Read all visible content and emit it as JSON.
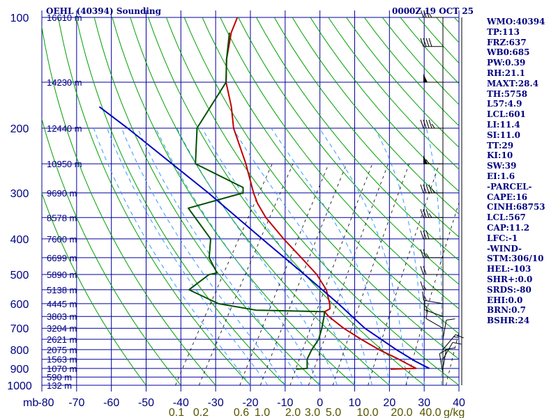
{
  "header": {
    "title": "OEHL (40394) Sounding",
    "time": "0000Z 19 OCT 25"
  },
  "indices": [
    "WMO:40394",
    "TP:113",
    "FRZ:637",
    "WB0:685",
    "PW:0.39",
    "RH:21.1",
    "MAXT:28.4",
    "TH:5758",
    "L57:4.9",
    "LCL:601",
    "LI:11.4",
    "SI:11.0",
    "TT:29",
    "KI:10",
    "SW:39",
    "EI:1.6",
    "-PARCEL-",
    "CAPE:16",
    "CINH:68753",
    "LCL:567",
    "CAP:11.2",
    "LFC:-1",
    "-WIND-",
    "STM:306/10",
    "HEL:-103",
    "SHR+:0.0",
    "SRDS:-80",
    "EHI:0.0",
    "BRN:0.7",
    "BSHR:24"
  ],
  "chart_data": {
    "type": "line",
    "title": "OEHL (40394) Sounding",
    "xlabel": "",
    "ylabel": "",
    "xlim": [
      -80,
      40
    ],
    "ylim": [
      1000,
      100
    ],
    "y_scale": "log",
    "grid": true,
    "pressure_ticks": [
      100,
      200,
      300,
      400,
      500,
      600,
      700,
      800,
      900,
      1000
    ],
    "pressure_unit_label": "mb",
    "temperature_ticks": [
      -80,
      -70,
      -60,
      -50,
      -40,
      -30,
      -20,
      -10,
      0,
      10,
      20,
      30,
      40
    ],
    "mixing_ratio_labels": [
      "0.1",
      "0.2",
      "0.6",
      "1.0",
      "2.0",
      "3.0",
      "5.0",
      "10.0",
      "20.0",
      "40.0"
    ],
    "mixing_ratio_unit": "g/kg",
    "height_labels": [
      {
        "p": 100,
        "text": "16610 m"
      },
      {
        "p": 150,
        "text": "14230 m"
      },
      {
        "p": 200,
        "text": "12440 m"
      },
      {
        "p": 250,
        "text": "10950 m"
      },
      {
        "p": 300,
        "text": "9690 m"
      },
      {
        "p": 350,
        "text": "8578 m"
      },
      {
        "p": 400,
        "text": "7600 m"
      },
      {
        "p": 450,
        "text": "6699 m"
      },
      {
        "p": 500,
        "text": "5890 m"
      },
      {
        "p": 550,
        "text": "5138 m"
      },
      {
        "p": 600,
        "text": "4445 m"
      },
      {
        "p": 650,
        "text": "3803 m"
      },
      {
        "p": 700,
        "text": "3204 m"
      },
      {
        "p": 750,
        "text": "2621 m"
      },
      {
        "p": 800,
        "text": "2075 m"
      },
      {
        "p": 850,
        "text": "1563 m"
      },
      {
        "p": 900,
        "text": "1070 m"
      },
      {
        "p": 950,
        "text": "590 m"
      },
      {
        "p": 1000,
        "text": "132 m"
      }
    ],
    "series": [
      {
        "key": "temperature",
        "color": "#c00000",
        "points": [
          [
            904,
            17.4
          ],
          [
            900,
            24.6
          ],
          [
            880,
            22.0
          ],
          [
            850,
            18.0
          ],
          [
            800,
            10.5
          ],
          [
            750,
            3.5
          ],
          [
            700,
            -3.5
          ],
          [
            650,
            -10.0
          ],
          [
            631,
            -12.0
          ],
          [
            620,
            -11.0
          ],
          [
            600,
            -12.0
          ],
          [
            550,
            -15.5
          ],
          [
            500,
            -21.0
          ],
          [
            450,
            -28.5
          ],
          [
            400,
            -37.0
          ],
          [
            350,
            -46.0
          ],
          [
            320,
            -51.0
          ],
          [
            300,
            -54.0
          ],
          [
            250,
            -61.5
          ],
          [
            200,
            -71.5
          ],
          [
            175,
            -76.0
          ],
          [
            150,
            -82.0
          ],
          [
            130,
            -86.0
          ],
          [
            110,
            -89.5
          ],
          [
            100,
            -90.5
          ]
        ]
      },
      {
        "key": "dewpoint",
        "color": "#005000",
        "points": [
          [
            904,
            -9.8
          ],
          [
            900,
            -6.7
          ],
          [
            850,
            -8.4
          ],
          [
            800,
            -8.8
          ],
          [
            750,
            -8.7
          ],
          [
            700,
            -9.8
          ],
          [
            650,
            -11.3
          ],
          [
            631,
            -12.0
          ],
          [
            625,
            -32.0
          ],
          [
            600,
            -44.0
          ],
          [
            550,
            -55.0
          ],
          [
            500,
            -52.0
          ],
          [
            495,
            -50.0
          ],
          [
            450,
            -55.0
          ],
          [
            400,
            -58.0
          ],
          [
            330,
            -70.0
          ],
          [
            300,
            -57.0
          ],
          [
            290,
            -58.0
          ],
          [
            250,
            -76.0
          ],
          [
            200,
            -82.0
          ],
          [
            150,
            -82.0
          ],
          [
            130,
            -86.0
          ],
          [
            110,
            -90.0
          ]
        ]
      },
      {
        "key": "parcel",
        "color": "#0000c0",
        "points": [
          [
            900,
            28.4
          ],
          [
            860,
            23.0
          ],
          [
            800,
            15.5
          ],
          [
            700,
            2.6
          ],
          [
            600,
            -9.5
          ],
          [
            500,
            -24.5
          ],
          [
            400,
            -43.2
          ],
          [
            300,
            -67.0
          ],
          [
            200,
            -102.0
          ],
          [
            175,
            -114.0
          ]
        ]
      }
    ],
    "wind_barbs": [
      {
        "p": 925,
        "dir": 350,
        "spd": 10
      },
      {
        "p": 900,
        "dir": 10,
        "spd": 10
      },
      {
        "p": 850,
        "dir": 30,
        "spd": 10
      },
      {
        "p": 800,
        "dir": 40,
        "spd": 15
      },
      {
        "p": 750,
        "dir": 10,
        "spd": 10
      },
      {
        "p": 700,
        "dir": 300,
        "spd": 10
      },
      {
        "p": 650,
        "dir": 290,
        "spd": 15
      },
      {
        "p": 600,
        "dir": 280,
        "spd": 15
      },
      {
        "p": 550,
        "dir": 270,
        "spd": 15
      },
      {
        "p": 500,
        "dir": 270,
        "spd": 20
      },
      {
        "p": 450,
        "dir": 270,
        "spd": 25
      },
      {
        "p": 400,
        "dir": 270,
        "spd": 30
      },
      {
        "p": 350,
        "dir": 270,
        "spd": 35
      },
      {
        "p": 300,
        "dir": 270,
        "spd": 45
      },
      {
        "p": 250,
        "dir": 270,
        "spd": 55
      },
      {
        "p": 200,
        "dir": 270,
        "spd": 45
      },
      {
        "p": 150,
        "dir": 270,
        "spd": 50
      },
      {
        "p": 120,
        "dir": 270,
        "spd": 40
      },
      {
        "p": 100,
        "dir": 270,
        "spd": 35
      }
    ],
    "colors": {
      "grid": "#0000a0",
      "dry_adiabat": "#00a000",
      "moist_adiabat": "#3399ff",
      "mixing_ratio": "#000000",
      "labels": "#000080",
      "mixing_ratio_labels": "#555500",
      "wind": "#000000"
    }
  }
}
